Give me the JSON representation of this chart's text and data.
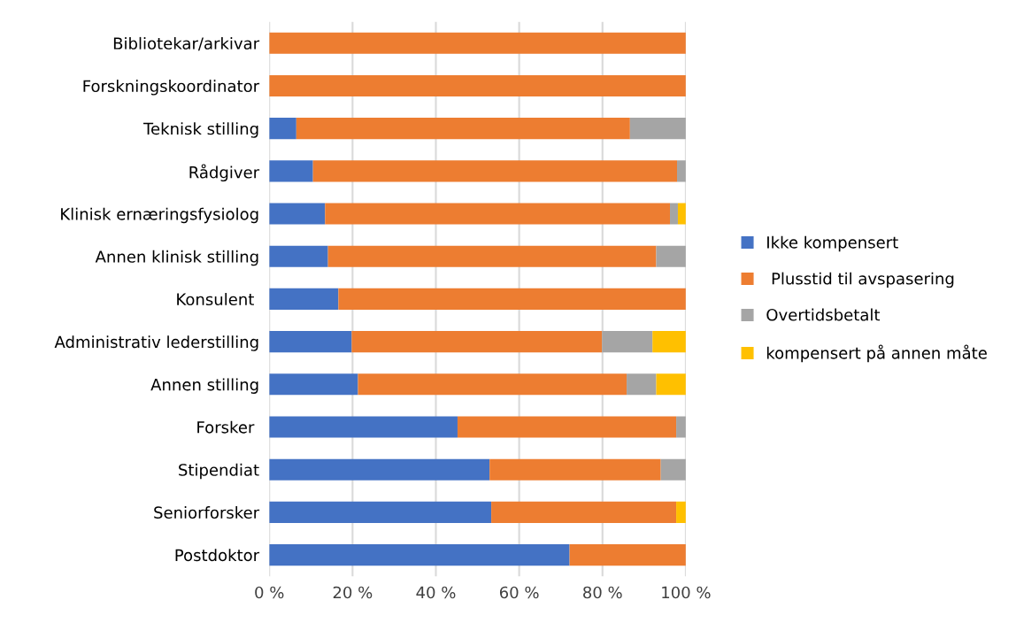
{
  "chart_data": {
    "type": "bar",
    "orientation": "horizontal",
    "stacked": true,
    "categories": [
      "Bibliotekar/arkivar",
      "Forskningskoordinator",
      "Teknisk stilling",
      "Rådgiver",
      "Klinisk ernæringsfysiolog",
      "Annen klinisk stilling",
      "Konsulent ",
      "Administrativ lederstilling",
      "Annen stilling",
      "Forsker ",
      "Stipendiat",
      "Seniorforsker",
      "Postdoktor"
    ],
    "series": [
      {
        "name": "Ikke kompensert",
        "color": "#4472c4",
        "values": [
          0,
          0,
          6.5,
          10.5,
          13.4,
          14.1,
          16.6,
          19.8,
          21.3,
          45.2,
          52.9,
          53.3,
          72.1
        ]
      },
      {
        "name": " Plusstid til avspasering",
        "color": "#ed7d31",
        "values": [
          100,
          100,
          80.1,
          87.4,
          82.8,
          78.8,
          83.4,
          60.1,
          64.5,
          52.5,
          41.1,
          44.4,
          27.9
        ]
      },
      {
        "name": "Overtidsbetalt",
        "color": "#a5a5a5",
        "values": [
          0,
          0,
          13.4,
          2.1,
          1.9,
          7.1,
          0,
          12.1,
          7.1,
          2.3,
          6.0,
          0,
          0
        ]
      },
      {
        "name": "kompensert på annen måte",
        "color": "#ffc000",
        "values": [
          0,
          0,
          0,
          0,
          1.9,
          0,
          0,
          8.0,
          7.1,
          0,
          0,
          2.3,
          0
        ]
      }
    ],
    "xlim": [
      0,
      100
    ],
    "xticks": [
      {
        "value": 0,
        "label": "0 %"
      },
      {
        "value": 20,
        "label": "20 %"
      },
      {
        "value": 40,
        "label": "40 %"
      },
      {
        "value": 60,
        "label": "60 %"
      },
      {
        "value": 80,
        "label": "80 %"
      },
      {
        "value": 100,
        "label": "100 %"
      }
    ],
    "grid": "x",
    "legend": "right"
  }
}
